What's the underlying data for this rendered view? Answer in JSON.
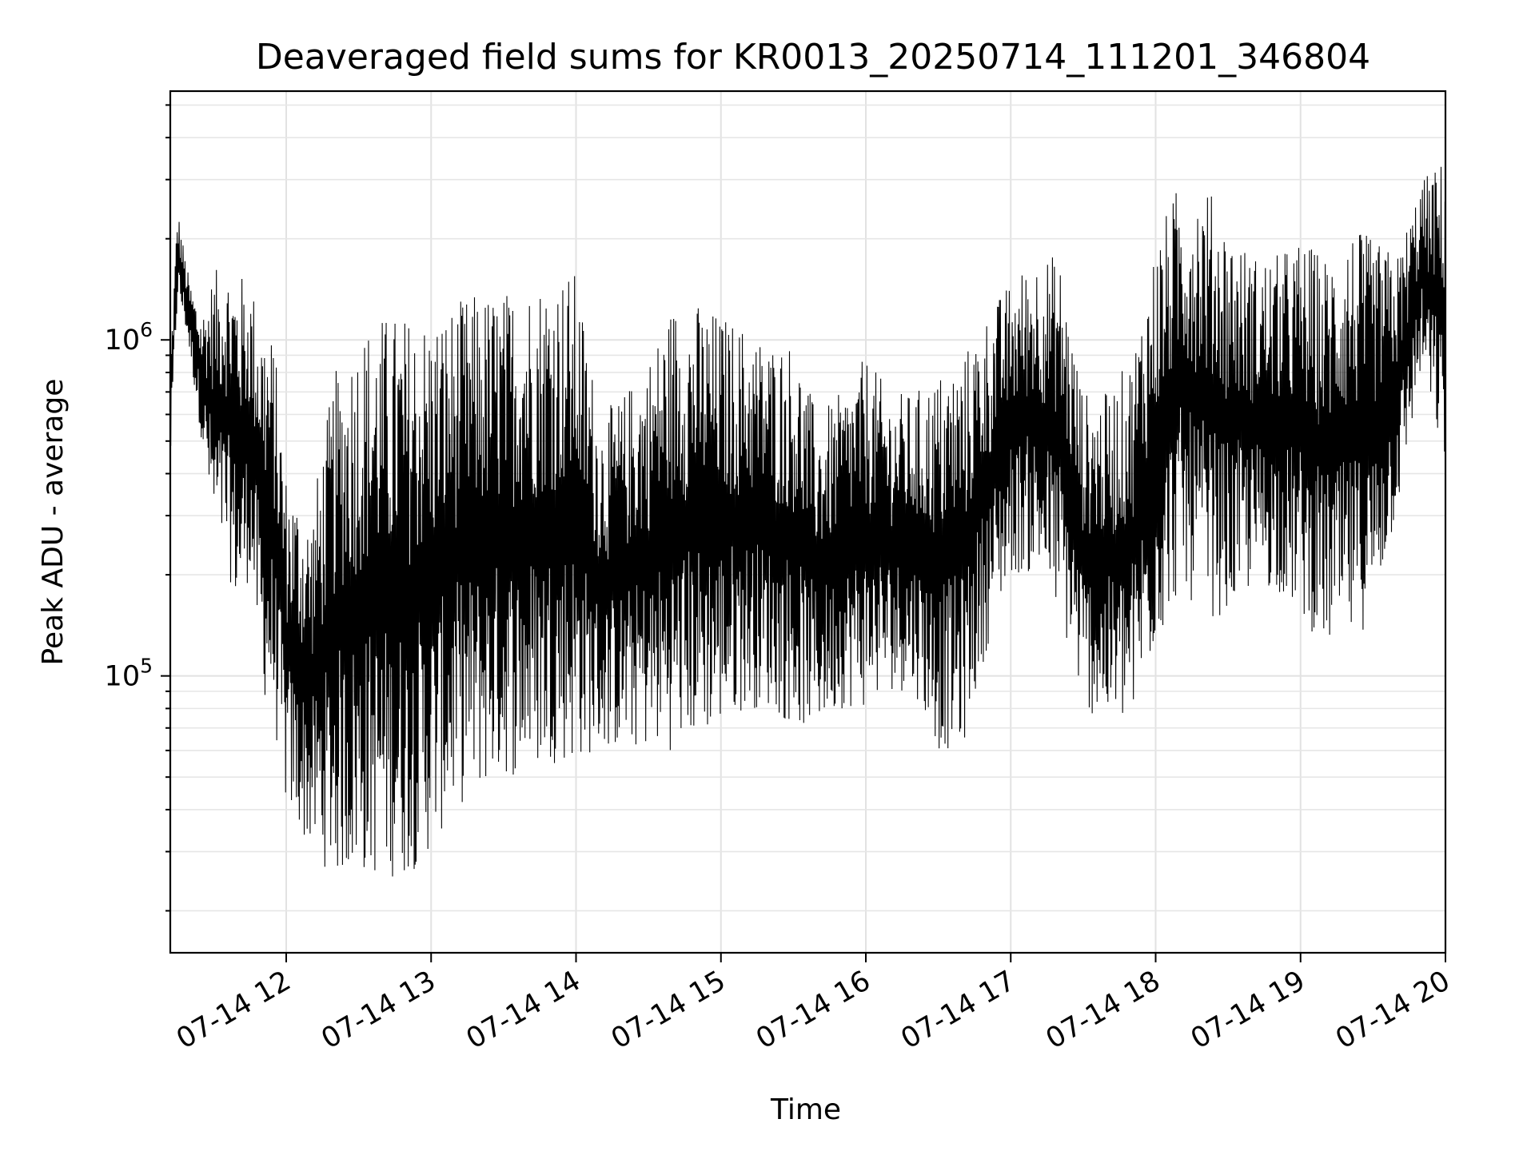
{
  "chart_data": {
    "type": "line",
    "title": "Deaveraged field sums for KR0013_20250714_111201_346804",
    "xlabel": "Time",
    "ylabel": "Peak ADU - average",
    "x_scale": "time",
    "y_scale": "log",
    "xlim": [
      "07-14 11:12",
      "07-14 20:00"
    ],
    "ylim": [
      15000,
      5500000
    ],
    "grid": true,
    "x_tick_labels": [
      "07-14 12",
      "07-14 13",
      "07-14 14",
      "07-14 15",
      "07-14 16",
      "07-14 17",
      "07-14 18",
      "07-14 19",
      "07-14 20"
    ],
    "y_tick_labels": [
      {
        "base": "10",
        "exp": "5",
        "value": 100000
      },
      {
        "base": "10",
        "exp": "6",
        "value": 1000000
      }
    ],
    "series": [
      {
        "color": "#000000",
        "x": [
          "07-14 11:12",
          "07-14 11:15",
          "07-14 11:18",
          "07-14 11:20",
          "07-14 11:25",
          "07-14 11:30",
          "07-14 11:35",
          "07-14 11:40",
          "07-14 11:45",
          "07-14 11:50",
          "07-14 11:55",
          "07-14 12:00",
          "07-14 12:10",
          "07-14 12:20",
          "07-14 12:30",
          "07-14 12:40",
          "07-14 12:50",
          "07-14 13:00",
          "07-14 13:10",
          "07-14 13:20",
          "07-14 13:30",
          "07-14 13:40",
          "07-14 13:50",
          "07-14 14:00",
          "07-14 14:10",
          "07-14 14:20",
          "07-14 14:30",
          "07-14 14:40",
          "07-14 14:50",
          "07-14 15:00",
          "07-14 15:10",
          "07-14 15:20",
          "07-14 15:30",
          "07-14 15:40",
          "07-14 15:50",
          "07-14 16:00",
          "07-14 16:10",
          "07-14 16:20",
          "07-14 16:30",
          "07-14 16:40",
          "07-14 16:50",
          "07-14 17:00",
          "07-14 17:10",
          "07-14 17:20",
          "07-14 17:30",
          "07-14 17:40",
          "07-14 17:50",
          "07-14 18:00",
          "07-14 18:10",
          "07-14 18:20",
          "07-14 18:30",
          "07-14 18:40",
          "07-14 18:50",
          "07-14 19:00",
          "07-14 19:10",
          "07-14 19:20",
          "07-14 19:30",
          "07-14 19:40",
          "07-14 19:50",
          "07-14 20:00"
        ],
        "y_low": [
          400000,
          1300000,
          1100000,
          900000,
          500000,
          250000,
          220000,
          150000,
          200000,
          90000,
          70000,
          40000,
          30000,
          25000,
          25000,
          25000,
          25000,
          30000,
          40000,
          45000,
          50000,
          50000,
          55000,
          55000,
          60000,
          60000,
          60000,
          60000,
          65000,
          70000,
          80000,
          80000,
          70000,
          70000,
          80000,
          80000,
          90000,
          90000,
          60000,
          60000,
          120000,
          200000,
          200000,
          150000,
          80000,
          70000,
          70000,
          120000,
          180000,
          150000,
          150000,
          180000,
          180000,
          150000,
          120000,
          120000,
          150000,
          300000,
          800000,
          400000
        ],
        "y_high": [
          900000,
          2500000,
          1800000,
          1500000,
          1200000,
          1600000,
          1700000,
          1600000,
          1500000,
          1200000,
          1000000,
          400000,
          300000,
          800000,
          1100000,
          1200000,
          1200000,
          1200000,
          1300000,
          1400000,
          1400000,
          1500000,
          1600000,
          1600000,
          600000,
          700000,
          900000,
          1300000,
          1300000,
          1200000,
          1100000,
          1000000,
          1000000,
          600000,
          700000,
          900000,
          700000,
          700000,
          800000,
          900000,
          1200000,
          1500000,
          1800000,
          1800000,
          700000,
          700000,
          900000,
          2000000,
          3000000,
          3000000,
          2200000,
          1800000,
          1800000,
          2000000,
          1800000,
          2200000,
          2000000,
          1800000,
          3000000,
          3500000
        ]
      }
    ]
  }
}
